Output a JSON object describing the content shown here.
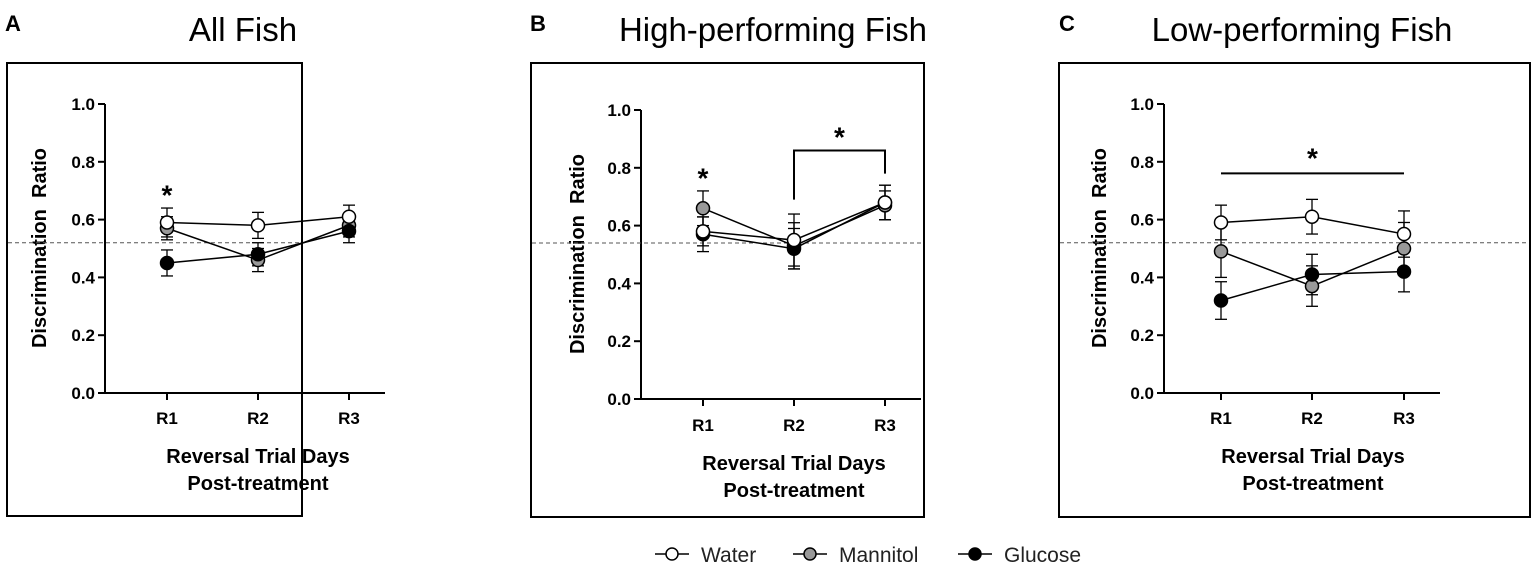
{
  "chart_data": [
    {
      "type": "line",
      "panel_letter": "A",
      "title": "All Fish",
      "xlabel_line1": "Reversal Trial Days",
      "xlabel_line2": "Post-treatment",
      "ylabel": "Discrimination  Ratio",
      "ylim": [
        0,
        1.0
      ],
      "yticks": [
        "0.0",
        "0.2",
        "0.4",
        "0.6",
        "0.8",
        "1.0"
      ],
      "categories": [
        "R1",
        "R2",
        "R3"
      ],
      "chance_line": 0.52,
      "series": [
        {
          "name": "Mannitol",
          "values": [
            0.57,
            0.46,
            0.58
          ],
          "errors": [
            0.04,
            0.04,
            0.04
          ]
        },
        {
          "name": "Glucose",
          "values": [
            0.45,
            0.48,
            0.56
          ],
          "errors": [
            0.045,
            0.04,
            0.04
          ]
        },
        {
          "name": "Water",
          "values": [
            0.59,
            0.58,
            0.61
          ],
          "errors": [
            0.05,
            0.045,
            0.04
          ]
        }
      ],
      "annotations": [
        {
          "type": "star",
          "text": "*",
          "x": "R1",
          "y": 0.7
        }
      ]
    },
    {
      "type": "line",
      "panel_letter": "B",
      "title": "High-performing Fish",
      "xlabel_line1": "Reversal Trial Days",
      "xlabel_line2": "Post-treatment",
      "ylabel": "Discrimination  Ratio",
      "ylim": [
        0,
        1.0
      ],
      "yticks": [
        "0.0",
        "0.2",
        "0.4",
        "0.6",
        "0.8",
        "1.0"
      ],
      "categories": [
        "R1",
        "R2",
        "R3"
      ],
      "chance_line": 0.54,
      "series": [
        {
          "name": "Mannitol",
          "values": [
            0.66,
            0.53,
            0.67
          ],
          "errors": [
            0.06,
            0.08,
            0.05
          ]
        },
        {
          "name": "Glucose",
          "values": [
            0.57,
            0.52,
            0.68
          ],
          "errors": [
            0.06,
            0.07,
            0.06
          ]
        },
        {
          "name": "Water",
          "values": [
            0.58,
            0.55,
            0.68
          ],
          "errors": [
            0.05,
            0.09,
            0.06
          ]
        }
      ],
      "annotations": [
        {
          "type": "star",
          "text": "*",
          "x": "R1",
          "y": 0.78
        },
        {
          "type": "bracket",
          "text": "*",
          "from": "R2",
          "to": "R3",
          "y": 0.86,
          "drop_to": [
            0.69,
            0.78
          ]
        }
      ]
    },
    {
      "type": "line",
      "panel_letter": "C",
      "title": "Low-performing Fish",
      "xlabel_line1": "Reversal Trial Days",
      "xlabel_line2": "Post-treatment",
      "ylabel": "Discrimination  Ratio",
      "ylim": [
        0,
        1.0
      ],
      "yticks": [
        "0.0",
        "0.2",
        "0.4",
        "0.6",
        "0.8",
        "1.0"
      ],
      "categories": [
        "R1",
        "R2",
        "R3"
      ],
      "chance_line": 0.52,
      "series": [
        {
          "name": "Mannitol",
          "values": [
            0.49,
            0.37,
            0.5
          ],
          "errors": [
            0.09,
            0.07,
            0.09
          ]
        },
        {
          "name": "Glucose",
          "values": [
            0.32,
            0.41,
            0.42
          ],
          "errors": [
            0.065,
            0.07,
            0.07
          ]
        },
        {
          "name": "Water",
          "values": [
            0.59,
            0.61,
            0.55
          ],
          "errors": [
            0.06,
            0.06,
            0.08
          ]
        }
      ],
      "annotations": [
        {
          "type": "line",
          "text": "*",
          "from": "R1",
          "to": "R3",
          "y": 0.76
        }
      ]
    }
  ],
  "legend": [
    {
      "label": "Water",
      "color": "#ffffff"
    },
    {
      "label": "Mannitol",
      "color": "#999999"
    },
    {
      "label": "Glucose",
      "color": "#000000"
    }
  ]
}
